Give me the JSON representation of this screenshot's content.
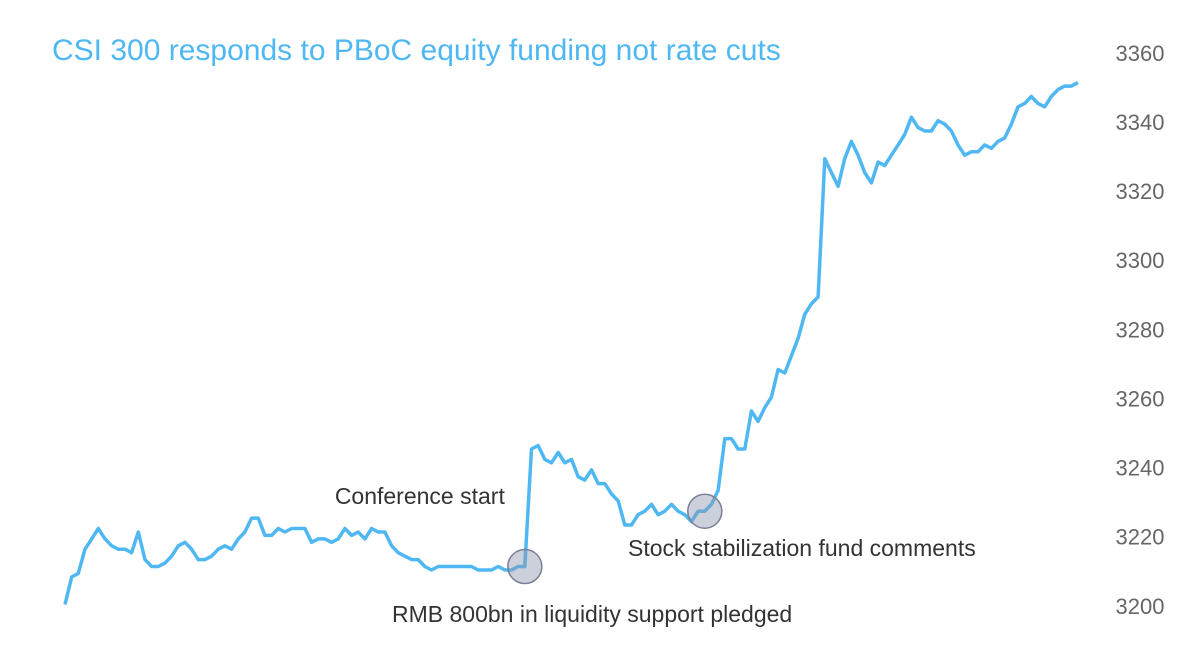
{
  "chart_data": {
    "type": "line",
    "title": "CSI 300 responds to PBoC equity funding not rate cuts",
    "categories": [
      null,
      null,
      null,
      null,
      null,
      null,
      null,
      null,
      null,
      null,
      null,
      null,
      null,
      null,
      null,
      null,
      null,
      null,
      null,
      null,
      null,
      null,
      null,
      null,
      null,
      null,
      null,
      null,
      null,
      null,
      null,
      null,
      null,
      null,
      null,
      null,
      null,
      null,
      null,
      null,
      null,
      null,
      null,
      null,
      null,
      null,
      null,
      null,
      null,
      null,
      null,
      null,
      null,
      null,
      null,
      null,
      null,
      null,
      null,
      null,
      null,
      null,
      null,
      null,
      null,
      null,
      null,
      null,
      null,
      null,
      null,
      null,
      null,
      null,
      null,
      null,
      null,
      null,
      null,
      null,
      null,
      null,
      null,
      null,
      null,
      null,
      null,
      null,
      null,
      null,
      null,
      null,
      null,
      null,
      null,
      null,
      null,
      null,
      null,
      null,
      null,
      null,
      null,
      null,
      null,
      null,
      null,
      null,
      null,
      null,
      null,
      null,
      null,
      null,
      null,
      null,
      null,
      null,
      null,
      null,
      null,
      null,
      null,
      null,
      null,
      null,
      null,
      null,
      null,
      null,
      null,
      null,
      null,
      null,
      null,
      null,
      null,
      null,
      null,
      null,
      null,
      null,
      null,
      null,
      null,
      null,
      null,
      null,
      null,
      null,
      null,
      null,
      null
    ],
    "values": [
      3201,
      3209,
      3210,
      3217,
      3220,
      3223,
      3220,
      3218,
      3217,
      3217,
      3216,
      3222,
      3214,
      3212,
      3212,
      3213,
      3215,
      3218,
      3219,
      3217,
      3214,
      3214,
      3215,
      3217,
      3218,
      3217,
      3220,
      3222,
      3226,
      3226,
      3221,
      3221,
      3223,
      3222,
      3223,
      3223,
      3223,
      3219,
      3220,
      3220,
      3219,
      3220,
      3223,
      3221,
      3222,
      3220,
      3223,
      3222,
      3222,
      3218,
      3216,
      3215,
      3214,
      3214,
      3212,
      3211,
      3212,
      3212,
      3212,
      3212,
      3212,
      3212,
      3211,
      3211,
      3211,
      3212,
      3211,
      3211,
      3212,
      3212,
      3246,
      3247,
      3243,
      3242,
      3245,
      3242,
      3243,
      3238,
      3237,
      3240,
      3236,
      3236,
      3233,
      3231,
      3224,
      3224,
      3227,
      3228,
      3230,
      3227,
      3228,
      3230,
      3228,
      3227,
      3225,
      3228,
      3228,
      3230,
      3234,
      3249,
      3249,
      3246,
      3246,
      3257,
      3254,
      3258,
      3261,
      3269,
      3268,
      3273,
      3278,
      3285,
      3288,
      3290,
      3330,
      3326,
      3322,
      3330,
      3335,
      3331,
      3326,
      3323,
      3329,
      3328,
      3331,
      3334,
      3337,
      3342,
      3339,
      3338,
      3338,
      3341,
      3340,
      3338,
      3334,
      3331,
      3332,
      3332,
      3334,
      3333,
      3335,
      3336,
      3340,
      3345,
      3346,
      3348,
      3346,
      3345,
      3348,
      3350,
      3351,
      3351,
      3352
    ],
    "color": "#4fb8f2",
    "ylim": [
      3200,
      3360
    ],
    "yticks": [
      3200,
      3220,
      3240,
      3260,
      3280,
      3300,
      3320,
      3340,
      3360
    ],
    "grid": false,
    "annotations": [
      "Conference start",
      "RMB 800bn in liquidity support pledged",
      "Stock stabilization fund comments"
    ]
  }
}
